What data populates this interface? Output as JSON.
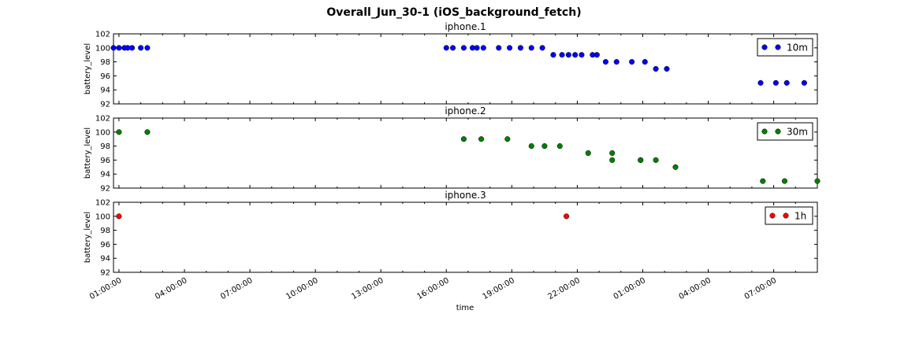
{
  "chart_data": {
    "type": "scatter",
    "title": "Overall_Jun_30-1 (iOS_background_fetch)",
    "xlabel": "time",
    "x_tick_labels": [
      "01:00:00",
      "04:00:00",
      "07:00:00",
      "10:00:00",
      "13:00:00",
      "16:00:00",
      "19:00:00",
      "22:00:00",
      "01:00:00",
      "04:00:00",
      "07:00:00"
    ],
    "x_tick_hours": [
      1,
      4,
      7,
      10,
      13,
      16,
      19,
      22,
      25,
      28,
      31
    ],
    "xlim_hours": [
      0.75,
      33.0
    ],
    "grid": false,
    "legend_position": "upper right",
    "panels": [
      {
        "title": "iphone.1",
        "ylabel": "battery_level",
        "ylim": [
          92,
          102
        ],
        "yticks": [
          92,
          94,
          96,
          98,
          100,
          102
        ],
        "series": [
          {
            "name": "10m",
            "color": "#0000ff",
            "points": [
              [
                0.75,
                100
              ],
              [
                1.0,
                100
              ],
              [
                1.25,
                100
              ],
              [
                1.4,
                100
              ],
              [
                1.6,
                100
              ],
              [
                2.0,
                100
              ],
              [
                2.3,
                100
              ],
              [
                16.0,
                100
              ],
              [
                16.3,
                100
              ],
              [
                16.8,
                100
              ],
              [
                17.2,
                100
              ],
              [
                17.4,
                100
              ],
              [
                17.7,
                100
              ],
              [
                18.4,
                100
              ],
              [
                18.9,
                100
              ],
              [
                19.4,
                100
              ],
              [
                19.9,
                100
              ],
              [
                20.4,
                100
              ],
              [
                20.9,
                99
              ],
              [
                21.3,
                99
              ],
              [
                21.6,
                99
              ],
              [
                21.9,
                99
              ],
              [
                22.2,
                99
              ],
              [
                22.7,
                99
              ],
              [
                22.9,
                99
              ],
              [
                23.3,
                98
              ],
              [
                23.8,
                98
              ],
              [
                24.5,
                98
              ],
              [
                25.1,
                98
              ],
              [
                25.6,
                97
              ],
              [
                26.1,
                97
              ],
              [
                30.4,
                95
              ],
              [
                31.1,
                95
              ],
              [
                31.6,
                95
              ],
              [
                32.4,
                95
              ]
            ]
          }
        ]
      },
      {
        "title": "iphone.2",
        "ylabel": "battery_level",
        "ylim": [
          92,
          102
        ],
        "yticks": [
          92,
          94,
          96,
          98,
          100,
          102
        ],
        "series": [
          {
            "name": "30m",
            "color": "#008000",
            "points": [
              [
                1.0,
                100
              ],
              [
                2.3,
                100
              ],
              [
                16.8,
                99
              ],
              [
                17.6,
                99
              ],
              [
                18.8,
                99
              ],
              [
                19.9,
                98
              ],
              [
                20.5,
                98
              ],
              [
                21.2,
                98
              ],
              [
                22.5,
                97
              ],
              [
                23.6,
                97
              ],
              [
                23.6,
                96
              ],
              [
                24.9,
                96
              ],
              [
                24.9,
                96
              ],
              [
                25.6,
                96
              ],
              [
                26.5,
                95
              ],
              [
                30.5,
                93
              ],
              [
                31.5,
                93
              ],
              [
                33.0,
                93
              ]
            ]
          }
        ]
      },
      {
        "title": "iphone.3",
        "ylabel": "battery_level",
        "ylim": [
          92,
          102
        ],
        "yticks": [
          92,
          94,
          96,
          98,
          100,
          102
        ],
        "series": [
          {
            "name": "1h",
            "color": "#ff0000",
            "points": [
              [
                1.0,
                100
              ],
              [
                21.5,
                100
              ]
            ]
          }
        ]
      }
    ]
  }
}
